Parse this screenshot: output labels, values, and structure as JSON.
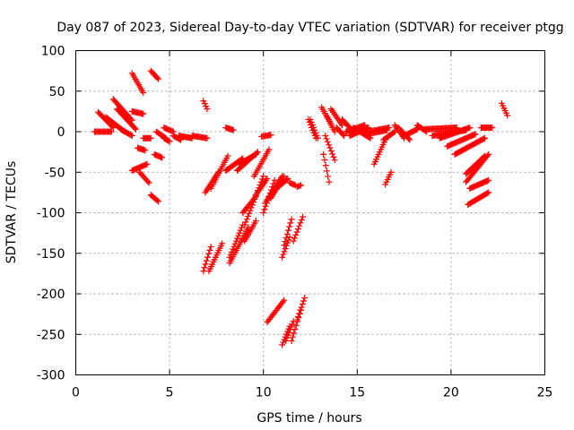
{
  "chart_data": {
    "type": "scatter",
    "title": "Day 087 of 2023, Sidereal Day-to-day VTEC variation (SDTVAR) for receiver ptgg",
    "xlabel": "GPS time / hours",
    "ylabel": "SDTVAR / TECUs",
    "xlim": [
      0,
      25
    ],
    "ylim": [
      -300,
      100
    ],
    "xticks": [
      0,
      5,
      10,
      15,
      20,
      25
    ],
    "yticks": [
      100,
      50,
      0,
      -50,
      -100,
      -150,
      -200,
      -250,
      -300
    ],
    "grid": true,
    "marker": "+",
    "color": "#ff0000",
    "series": [
      {
        "name": "SDTVAR",
        "tracks": [
          {
            "x0": 1.0,
            "x1": 1.9,
            "y0": 0,
            "y1": 0
          },
          {
            "x0": 1.2,
            "x1": 2.0,
            "y0": 24,
            "y1": 5
          },
          {
            "x0": 1.6,
            "x1": 2.6,
            "y0": 18,
            "y1": 0
          },
          {
            "x0": 2.0,
            "x1": 3.0,
            "y0": 40,
            "y1": 14
          },
          {
            "x0": 2.2,
            "x1": 3.2,
            "y0": 28,
            "y1": 3
          },
          {
            "x0": 2.4,
            "x1": 3.0,
            "y0": 3,
            "y1": -5
          },
          {
            "x0": 3.0,
            "x1": 3.6,
            "y0": 25,
            "y1": 22
          },
          {
            "x0": 3.0,
            "x1": 3.6,
            "y0": 72,
            "y1": 48
          },
          {
            "x0": 3.0,
            "x1": 3.8,
            "y0": -48,
            "y1": -40
          },
          {
            "x0": 3.3,
            "x1": 3.7,
            "y0": -20,
            "y1": -23
          },
          {
            "x0": 3.4,
            "x1": 3.9,
            "y0": -50,
            "y1": -63
          },
          {
            "x0": 3.6,
            "x1": 4.0,
            "y0": -8,
            "y1": -8
          },
          {
            "x0": 4.0,
            "x1": 4.4,
            "y0": 75,
            "y1": 65
          },
          {
            "x0": 4.0,
            "x1": 4.4,
            "y0": -78,
            "y1": -86
          },
          {
            "x0": 4.2,
            "x1": 4.6,
            "y0": -28,
            "y1": -32
          },
          {
            "x0": 4.3,
            "x1": 4.8,
            "y0": 0,
            "y1": -8
          },
          {
            "x0": 4.7,
            "x1": 5.2,
            "y0": 5,
            "y1": 0
          },
          {
            "x0": 4.7,
            "x1": 5.0,
            "y0": -8,
            "y1": -12
          },
          {
            "x0": 5.2,
            "x1": 5.6,
            "y0": -5,
            "y1": -10
          },
          {
            "x0": 5.5,
            "x1": 6.2,
            "y0": -5,
            "y1": -8
          },
          {
            "x0": 6.2,
            "x1": 7.0,
            "y0": -5,
            "y1": -8
          },
          {
            "x0": 6.8,
            "x1": 7.0,
            "y0": 38,
            "y1": 28
          },
          {
            "x0": 6.8,
            "x1": 7.2,
            "y0": -172,
            "y1": -142
          },
          {
            "x0": 6.9,
            "x1": 7.6,
            "y0": -75,
            "y1": -50
          },
          {
            "x0": 7.1,
            "x1": 7.8,
            "y0": -172,
            "y1": -138
          },
          {
            "x0": 7.2,
            "x1": 8.1,
            "y0": -70,
            "y1": -30
          },
          {
            "x0": 8.0,
            "x1": 8.4,
            "y0": 5,
            "y1": 2
          },
          {
            "x0": 8.0,
            "x1": 8.9,
            "y0": -48,
            "y1": -33
          },
          {
            "x0": 8.2,
            "x1": 8.9,
            "y0": -155,
            "y1": -115
          },
          {
            "x0": 8.2,
            "x1": 9.2,
            "y0": -162,
            "y1": -118
          },
          {
            "x0": 8.6,
            "x1": 9.7,
            "y0": -48,
            "y1": -25
          },
          {
            "x0": 8.7,
            "x1": 9.6,
            "y0": -40,
            "y1": -28
          },
          {
            "x0": 8.9,
            "x1": 9.6,
            "y0": -100,
            "y1": -80
          },
          {
            "x0": 9.0,
            "x1": 9.6,
            "y0": -135,
            "y1": -110
          },
          {
            "x0": 9.0,
            "x1": 10.0,
            "y0": -115,
            "y1": -55
          },
          {
            "x0": 9.5,
            "x1": 10.3,
            "y0": -55,
            "y1": -22
          },
          {
            "x0": 9.6,
            "x1": 10.2,
            "y0": -78,
            "y1": -58
          },
          {
            "x0": 9.9,
            "x1": 10.4,
            "y0": -6,
            "y1": -4
          },
          {
            "x0": 10.0,
            "x1": 10.6,
            "y0": -100,
            "y1": -60
          },
          {
            "x0": 10.1,
            "x1": 11.0,
            "y0": -88,
            "y1": -55
          },
          {
            "x0": 10.2,
            "x1": 11.1,
            "y0": -235,
            "y1": -208
          },
          {
            "x0": 10.4,
            "x1": 11.1,
            "y0": -82,
            "y1": -55
          },
          {
            "x0": 10.8,
            "x1": 11.3,
            "y0": -68,
            "y1": -58
          },
          {
            "x0": 11.0,
            "x1": 11.4,
            "y0": -263,
            "y1": -240
          },
          {
            "x0": 11.0,
            "x1": 11.4,
            "y0": -155,
            "y1": -130
          },
          {
            "x0": 11.1,
            "x1": 11.5,
            "y0": -140,
            "y1": -108
          },
          {
            "x0": 11.2,
            "x1": 11.6,
            "y0": -258,
            "y1": -234
          },
          {
            "x0": 11.4,
            "x1": 11.7,
            "y0": -63,
            "y1": -66
          },
          {
            "x0": 11.5,
            "x1": 12.0,
            "y0": -258,
            "y1": -220
          },
          {
            "x0": 11.6,
            "x1": 12.1,
            "y0": -135,
            "y1": -105
          },
          {
            "x0": 11.8,
            "x1": 12.2,
            "y0": -232,
            "y1": -205
          },
          {
            "x0": 11.8,
            "x1": 12.0,
            "y0": -68,
            "y1": -66
          },
          {
            "x0": 12.4,
            "x1": 12.8,
            "y0": 15,
            "y1": -8
          },
          {
            "x0": 12.5,
            "x1": 12.9,
            "y0": 15,
            "y1": -8
          },
          {
            "x0": 13.1,
            "x1": 13.6,
            "y0": 30,
            "y1": 10
          },
          {
            "x0": 13.2,
            "x1": 13.5,
            "y0": -28,
            "y1": -62
          },
          {
            "x0": 13.3,
            "x1": 13.8,
            "y0": -5,
            "y1": -35
          },
          {
            "x0": 13.4,
            "x1": 13.8,
            "y0": 18,
            "y1": 0
          },
          {
            "x0": 13.6,
            "x1": 14.2,
            "y0": 28,
            "y1": 8
          },
          {
            "x0": 13.9,
            "x1": 14.3,
            "y0": 5,
            "y1": -5
          },
          {
            "x0": 14.2,
            "x1": 14.8,
            "y0": 15,
            "y1": 0
          },
          {
            "x0": 14.4,
            "x1": 15.4,
            "y0": 0,
            "y1": 8
          },
          {
            "x0": 14.6,
            "x1": 15.6,
            "y0": -5,
            "y1": 5
          },
          {
            "x0": 14.8,
            "x1": 15.7,
            "y0": 5,
            "y1": -8
          },
          {
            "x0": 15.5,
            "x1": 16.6,
            "y0": -3,
            "y1": 2
          },
          {
            "x0": 15.6,
            "x1": 16.7,
            "y0": 0,
            "y1": 5
          },
          {
            "x0": 15.9,
            "x1": 16.5,
            "y0": -40,
            "y1": -10
          },
          {
            "x0": 16.4,
            "x1": 17.0,
            "y0": -10,
            "y1": 0
          },
          {
            "x0": 16.5,
            "x1": 16.8,
            "y0": -65,
            "y1": -50
          },
          {
            "x0": 17.0,
            "x1": 17.5,
            "y0": 8,
            "y1": -8
          },
          {
            "x0": 17.2,
            "x1": 17.8,
            "y0": 5,
            "y1": -10
          },
          {
            "x0": 17.5,
            "x1": 18.2,
            "y0": -5,
            "y1": 3
          },
          {
            "x0": 18.2,
            "x1": 18.7,
            "y0": 8,
            "y1": 0
          },
          {
            "x0": 18.6,
            "x1": 20.3,
            "y0": 3,
            "y1": 5
          },
          {
            "x0": 19.0,
            "x1": 20.8,
            "y0": -5,
            "y1": 2
          },
          {
            "x0": 19.4,
            "x1": 21.0,
            "y0": -8,
            "y1": 5
          },
          {
            "x0": 19.8,
            "x1": 21.3,
            "y0": -18,
            "y1": -3
          },
          {
            "x0": 20.2,
            "x1": 21.8,
            "y0": -28,
            "y1": -8
          },
          {
            "x0": 20.8,
            "x1": 21.8,
            "y0": -52,
            "y1": -30
          },
          {
            "x0": 20.8,
            "x1": 22.0,
            "y0": -62,
            "y1": -28
          },
          {
            "x0": 20.9,
            "x1": 22.0,
            "y0": -90,
            "y1": -75
          },
          {
            "x0": 21.0,
            "x1": 22.0,
            "y0": -70,
            "y1": -60
          },
          {
            "x0": 21.6,
            "x1": 22.2,
            "y0": 5,
            "y1": 5
          },
          {
            "x0": 22.7,
            "x1": 23.0,
            "y0": 35,
            "y1": 20
          }
        ]
      }
    ]
  }
}
